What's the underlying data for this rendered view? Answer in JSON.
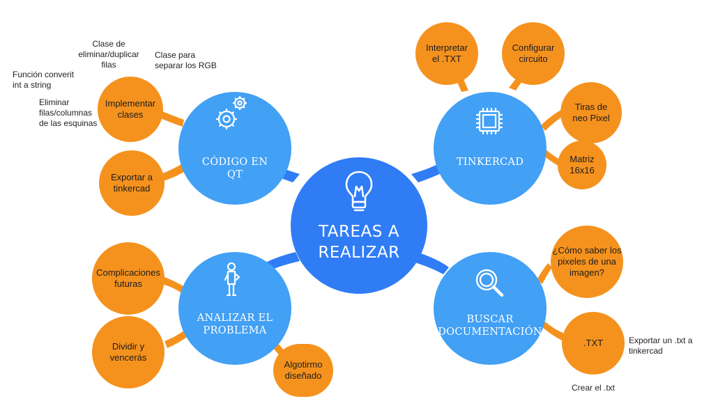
{
  "colors": {
    "center": "#2f7cf5",
    "main": "#42a0f5",
    "sub": "#f5921e",
    "background": "#ffffff"
  },
  "center": {
    "label": "TAREAS A\nREALIZAR",
    "icon": "lightbulb-icon"
  },
  "branches": {
    "codigo": {
      "label": "CÓDIGO EN\nQT",
      "icon": "gears-icon",
      "children": [
        "Implementar\nclases",
        "Exportar a\ntinkercad"
      ],
      "notes": [
        "Clase de\neliminar/duplicar\nfilas",
        "Clase para\nseparar los RGB",
        "Función converit\nint a string",
        "Eliminar\nfilas/columnas\nde las esquinas"
      ]
    },
    "tinkercad": {
      "label": "TINKERCAD",
      "icon": "chip-icon",
      "children": [
        "Interpretar\nel .TXT",
        "Configurar\ncircuito",
        "Tiras de\nneo Pixel",
        "Matriz\n16x16"
      ]
    },
    "analizar": {
      "label": "ANALIZAR EL\nPROBLEMA",
      "icon": "person-thinking-icon",
      "children": [
        "Complicaciones\nfuturas",
        "Dividir y\nvencerás",
        "Algotirmo\ndiseñado"
      ]
    },
    "buscar": {
      "label": "BUSCAR\nDOCUMENTACIÓN",
      "icon": "magnifier-icon",
      "children": [
        "¿Cómo saber los\npixeles de una\nimagen?",
        ".TXT"
      ],
      "notes": [
        "Exportar un .txt a\ntinkercad",
        "Crear el .txt"
      ]
    }
  }
}
